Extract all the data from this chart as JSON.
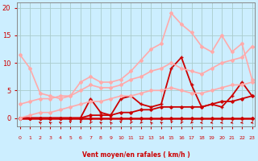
{
  "x": [
    0,
    1,
    2,
    3,
    4,
    5,
    6,
    7,
    8,
    9,
    10,
    11,
    12,
    13,
    14,
    15,
    16,
    17,
    18,
    19,
    20,
    21,
    22,
    23
  ],
  "series": [
    {
      "name": "s1_flatline",
      "color": "#cc0000",
      "linewidth": 1.8,
      "marker": "D",
      "markersize": 2.0,
      "y": [
        0,
        0,
        0,
        0,
        0,
        0,
        0,
        0,
        0,
        0,
        0,
        0,
        0,
        0,
        0,
        0,
        0,
        0,
        0,
        0,
        0,
        0,
        0,
        0
      ]
    },
    {
      "name": "s2_slow_rise",
      "color": "#cc0000",
      "linewidth": 1.3,
      "marker": "D",
      "markersize": 1.8,
      "y": [
        0,
        0,
        0,
        0,
        0,
        0,
        0,
        0.5,
        0.5,
        0.5,
        1,
        1,
        1.5,
        1.5,
        2,
        2,
        2,
        2,
        2,
        2.5,
        3,
        3,
        3.5,
        4
      ]
    },
    {
      "name": "s3_jagged_low",
      "color": "#cc0000",
      "linewidth": 1.3,
      "marker": "+",
      "markersize": 3.5,
      "y": [
        0,
        0,
        0,
        0,
        0,
        0,
        0,
        3.5,
        1,
        0.5,
        3.5,
        4,
        2.5,
        2,
        2.5,
        9,
        11,
        6,
        2,
        2.5,
        2,
        4,
        6.5,
        4
      ]
    },
    {
      "name": "s4_pink_low_linear",
      "color": "#ffaaaa",
      "linewidth": 1.2,
      "marker": "D",
      "markersize": 2.0,
      "y": [
        0,
        0.5,
        1,
        1,
        1.5,
        2,
        2.5,
        3,
        3,
        3.5,
        4,
        4,
        4.5,
        5,
        5,
        5.5,
        5,
        4.5,
        4.5,
        5,
        5.5,
        6,
        6,
        6.5
      ]
    },
    {
      "name": "s5_pink_medium_linear",
      "color": "#ffaaaa",
      "linewidth": 1.2,
      "marker": "D",
      "markersize": 2.0,
      "y": [
        2.5,
        3,
        3.5,
        3.5,
        4,
        4,
        5,
        6,
        5.5,
        5.5,
        6,
        7,
        7.5,
        8.5,
        9,
        10,
        9,
        8.5,
        8,
        9,
        10,
        10.5,
        11,
        13
      ]
    },
    {
      "name": "s6_pink_high_jagged",
      "color": "#ffaaaa",
      "linewidth": 1.2,
      "marker": "D",
      "markersize": 2.0,
      "y": [
        11.5,
        9,
        4.5,
        4,
        3.5,
        4,
        6.5,
        7.5,
        6.5,
        6.5,
        7,
        8.5,
        10.5,
        12.5,
        13.5,
        19,
        17,
        15.5,
        13,
        12,
        15,
        12,
        13.5,
        7
      ]
    }
  ],
  "xlim": [
    0,
    23
  ],
  "ylim": [
    0,
    21
  ],
  "yticks": [
    0,
    5,
    10,
    15,
    20
  ],
  "xticks": [
    0,
    1,
    2,
    3,
    4,
    5,
    6,
    7,
    8,
    9,
    10,
    11,
    12,
    13,
    14,
    15,
    16,
    17,
    18,
    19,
    20,
    21,
    22,
    23
  ],
  "xlabel": "Vent moyen/en rafales ( km/h )",
  "bg_color": "#cceeff",
  "grid_color": "#aacccc",
  "text_color": "#cc0000",
  "axis_color": "#888888",
  "wind_x": [
    2,
    3,
    4,
    5,
    6,
    7,
    8,
    9,
    10,
    11,
    12,
    13,
    14,
    15,
    16,
    17,
    18,
    19,
    20,
    21,
    22,
    23
  ],
  "wind_angles": [
    130,
    130,
    130,
    270,
    260,
    250,
    130,
    115,
    270,
    250,
    240,
    115,
    130,
    260,
    250,
    240,
    190,
    200,
    200,
    200,
    200,
    200
  ]
}
